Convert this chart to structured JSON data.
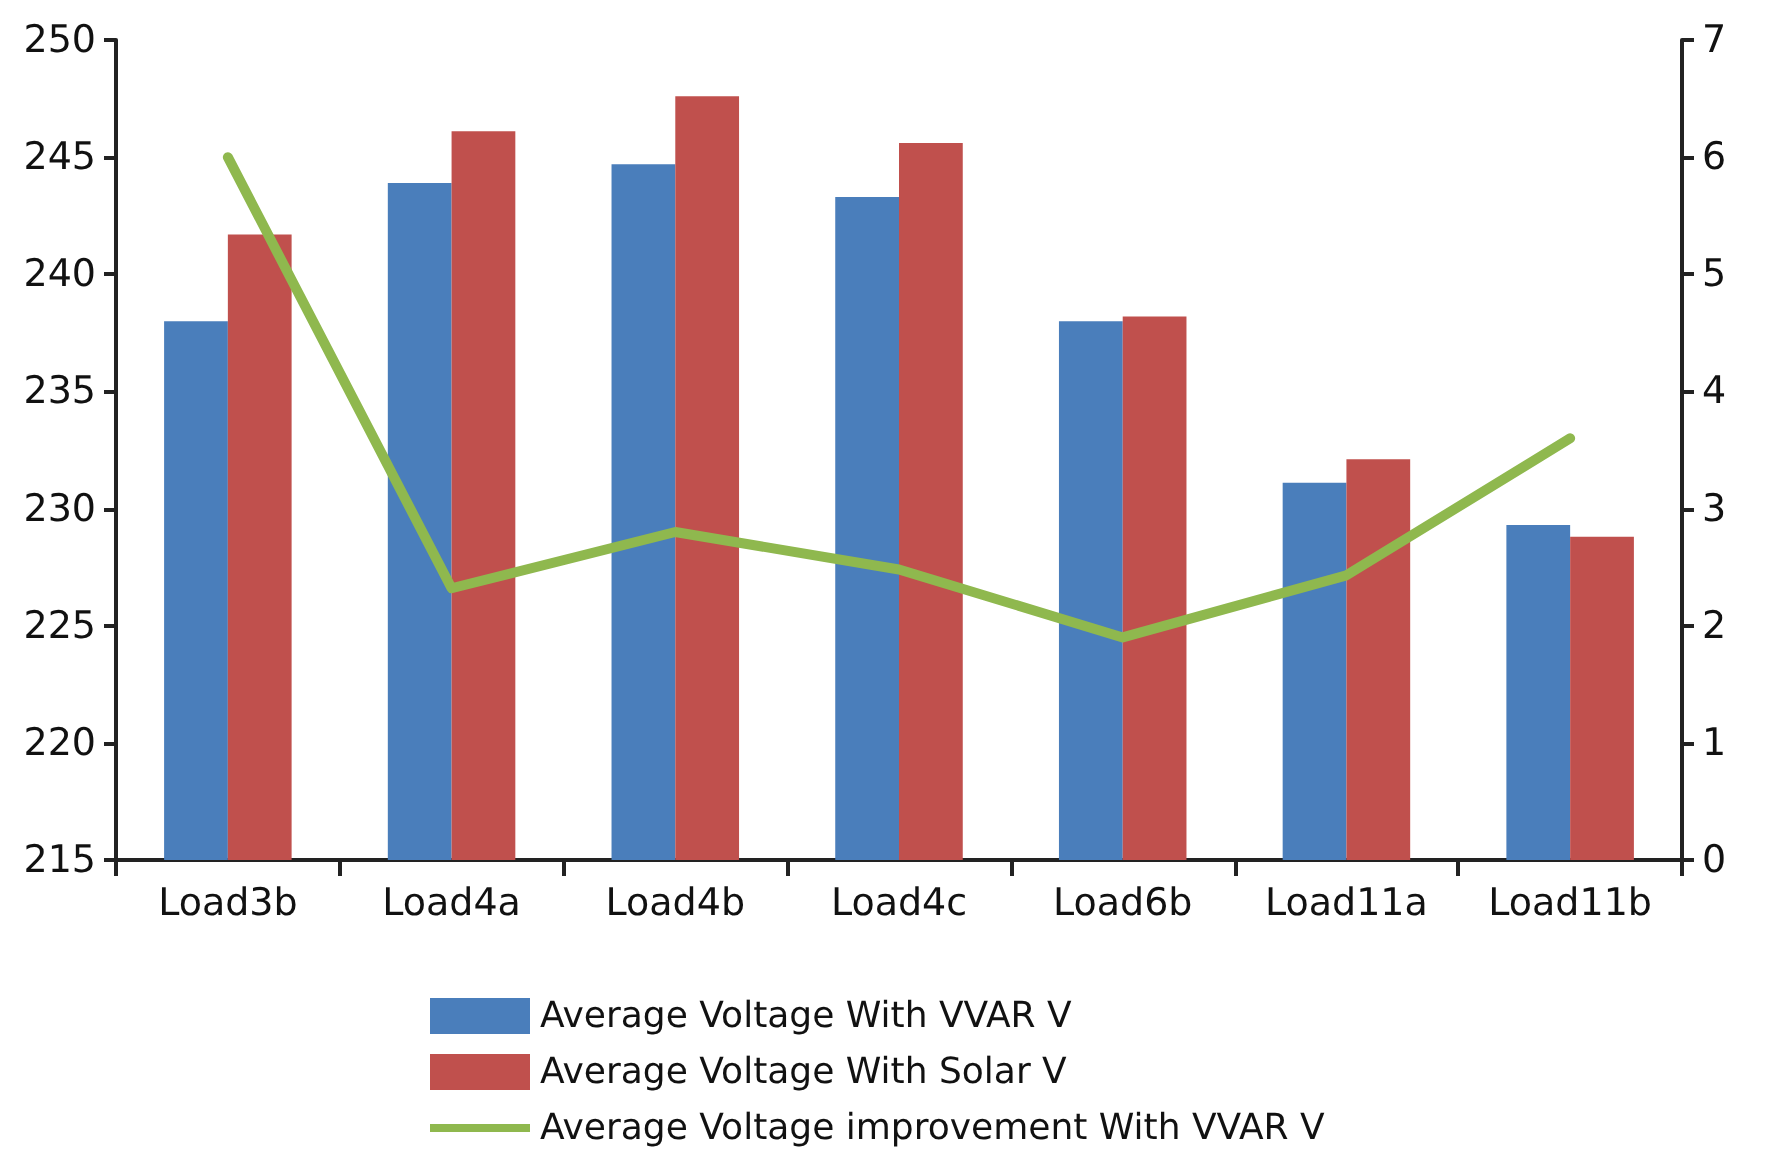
{
  "chart_data": {
    "type": "bar",
    "categories": [
      "Load3b",
      "Load4a",
      "Load4b",
      "Load4c",
      "Load6b",
      "Load11a",
      "Load11b"
    ],
    "series": [
      {
        "name": "Average Voltage With VVAR V",
        "color": "#4a7ebb",
        "values": [
          238.0,
          243.9,
          244.7,
          243.3,
          238.0,
          231.1,
          229.3
        ]
      },
      {
        "name": "Average Voltage With Solar V",
        "color": "#c0504d",
        "values": [
          241.7,
          246.1,
          247.6,
          245.6,
          238.2,
          232.1,
          228.8
        ]
      },
      {
        "name": "Average Voltage improvement With VVAR V",
        "type": "line",
        "axis": "y2",
        "color": "#8fb84e",
        "values": [
          6.0,
          2.32,
          2.8,
          2.48,
          1.9,
          2.43,
          3.6
        ]
      }
    ],
    "ylim": [
      215,
      250
    ],
    "yticks": [
      215,
      220,
      225,
      230,
      235,
      240,
      245,
      250
    ],
    "y2lim": [
      0,
      7
    ],
    "y2ticks": [
      0,
      1,
      2,
      3,
      4,
      5,
      6,
      7
    ],
    "grid": false,
    "legend": "bottom",
    "marker": "none",
    "line_style": "solid"
  }
}
